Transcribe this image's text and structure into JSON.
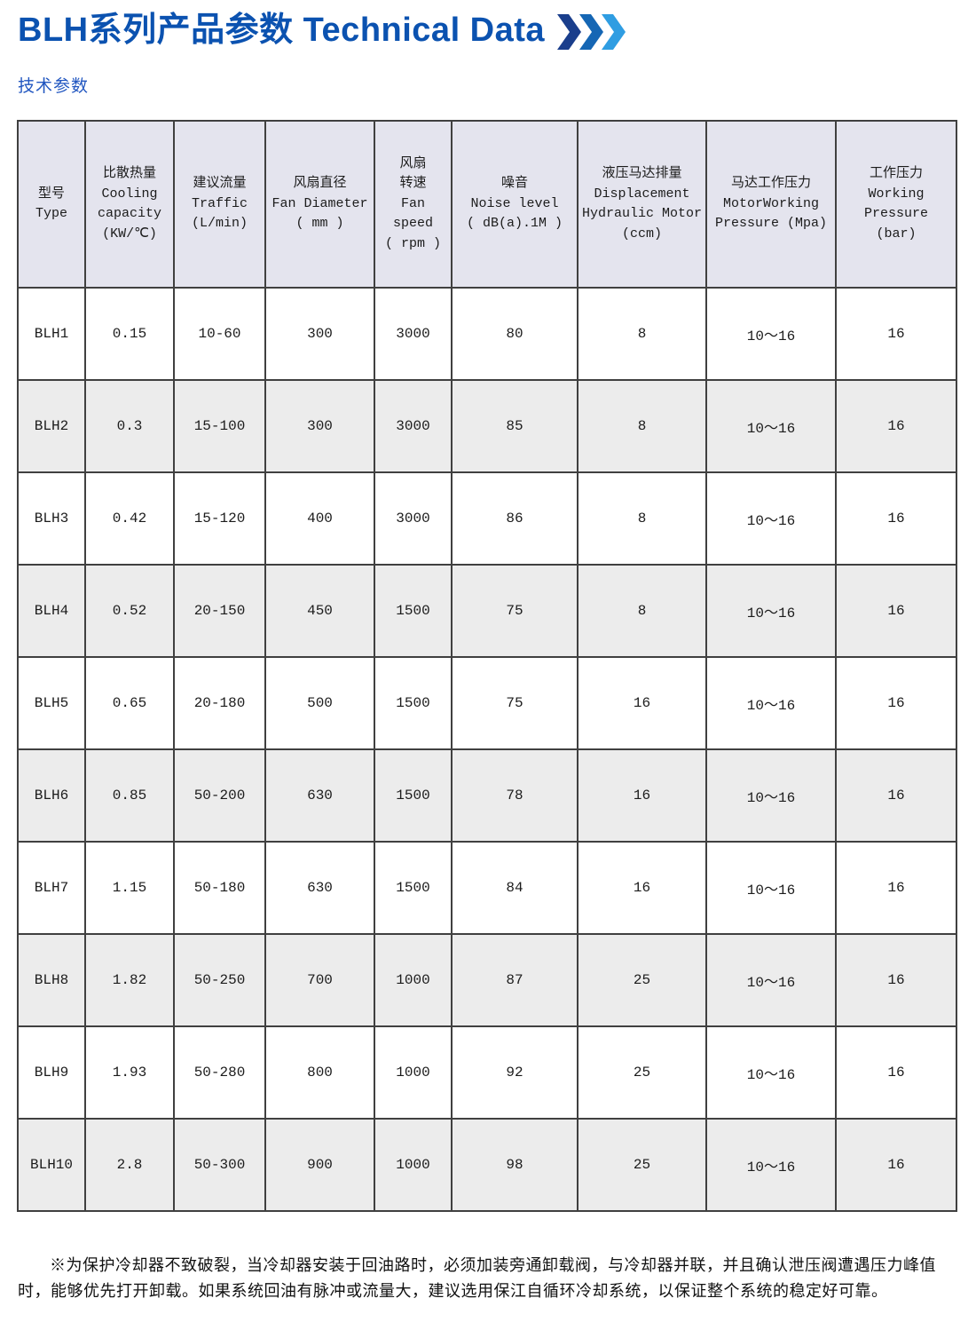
{
  "page": {
    "title": "BLH系列产品参数 Technical Data",
    "subtitle": "技术参数"
  },
  "colors": {
    "title_blue": "#0b52b0",
    "subtitle_blue": "#2156c0",
    "header_bg": "#e4e4ee",
    "alt_row_bg": "#ececec",
    "table_border": "#404040",
    "chevron_1": "#1a3e8c",
    "chevron_2": "#1566b4",
    "chevron_3": "#2f9de2"
  },
  "table": {
    "columns": [
      {
        "id": "type",
        "label": "型号\nType"
      },
      {
        "id": "cooling-capacity",
        "label": "比散热量\nCooling\ncapacity\n(KW/℃)"
      },
      {
        "id": "traffic",
        "label": "建议流量\nTraffic\n(L/min)"
      },
      {
        "id": "fan-diameter",
        "label": "风扇直径\nFan Diameter\n( mm )"
      },
      {
        "id": "fan-speed",
        "label": "风扇\n转速\nFan\nspeed\n( rpm )"
      },
      {
        "id": "noise-level",
        "label": "噪音\nNoise level\n( dB(a).1M )"
      },
      {
        "id": "displacement",
        "label": "液压马达排量\nDisplacement\nHydraulic Motor\n(ccm)"
      },
      {
        "id": "motor-pressure",
        "label": "马达工作压力\nMotorWorking\nPressure (Mpa)"
      },
      {
        "id": "working-pressure",
        "label": "工作压力\nWorking\nPressure\n(bar)"
      }
    ],
    "rows": [
      [
        "BLH1",
        "0.15",
        "10-60",
        "300",
        "3000",
        "80",
        "8",
        "10～16",
        "16"
      ],
      [
        "BLH2",
        "0.3",
        "15-100",
        "300",
        "3000",
        "85",
        "8",
        "10～16",
        "16"
      ],
      [
        "BLH3",
        "0.42",
        "15-120",
        "400",
        "3000",
        "86",
        "8",
        "10～16",
        "16"
      ],
      [
        "BLH4",
        "0.52",
        "20-150",
        "450",
        "1500",
        "75",
        "8",
        "10～16",
        "16"
      ],
      [
        "BLH5",
        "0.65",
        "20-180",
        "500",
        "1500",
        "75",
        "16",
        "10～16",
        "16"
      ],
      [
        "BLH6",
        "0.85",
        "50-200",
        "630",
        "1500",
        "78",
        "16",
        "10～16",
        "16"
      ],
      [
        "BLH7",
        "1.15",
        "50-180",
        "630",
        "1500",
        "84",
        "16",
        "10～16",
        "16"
      ],
      [
        "BLH8",
        "1.82",
        "50-250",
        "700",
        "1000",
        "87",
        "25",
        "10～16",
        "16"
      ],
      [
        "BLH9",
        "1.93",
        "50-280",
        "800",
        "1000",
        "92",
        "25",
        "10～16",
        "16"
      ],
      [
        "BLH10",
        "2.8",
        "50-300",
        "900",
        "1000",
        "98",
        "25",
        "10～16",
        "16"
      ]
    ]
  },
  "note": {
    "line1": "※为保护冷却器不致破裂，当冷却器安装于回油路时，必须加装旁通卸载阀，与冷却器并联，并且确认泄压阀遭遇压力峰值",
    "line2": "时，能够优先打开卸载。如果系统回油有脉冲或流量大，建议选用保江自循环冷却系统，以保证整个系统的稳定好可靠。"
  }
}
